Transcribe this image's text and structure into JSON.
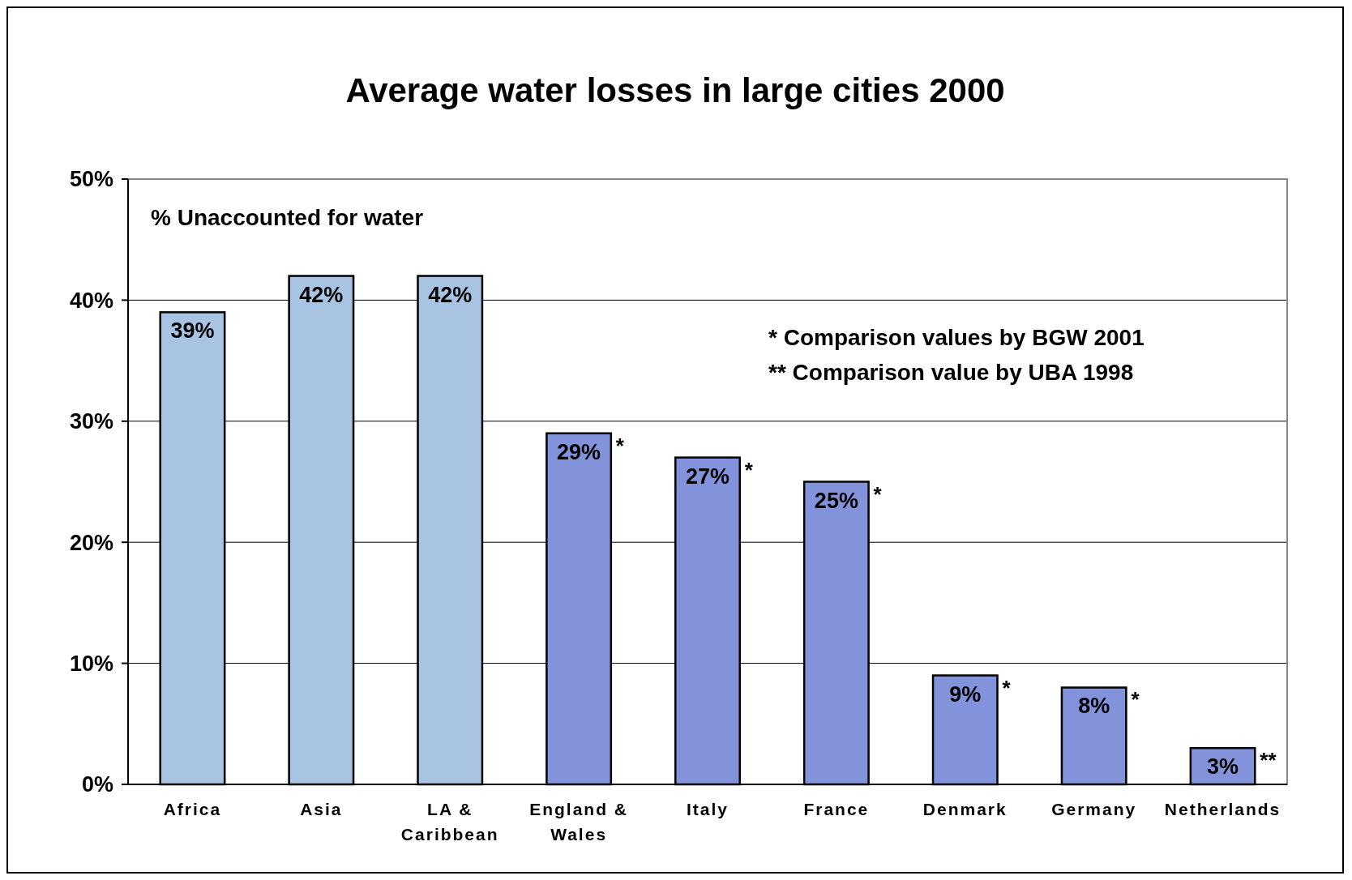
{
  "chart_data": {
    "type": "bar",
    "title": "Average water losses in large cities 2000",
    "ylabel": "% Unaccounted for water",
    "categories": [
      "Africa",
      "Asia",
      "LA & Caribbean",
      "England & Wales",
      "Italy",
      "France",
      "Denmark",
      "Germany",
      "Netherlands"
    ],
    "values": [
      39,
      42,
      42,
      29,
      27,
      25,
      9,
      8,
      3
    ],
    "value_labels": [
      "39%",
      "42%",
      "42%",
      "29%",
      "27%",
      "25%",
      "9%",
      "8%",
      "3%"
    ],
    "colors": [
      "#a9c4e3",
      "#a9c4e3",
      "#a9c4e3",
      "#8393db",
      "#8393db",
      "#8393db",
      "#8393db",
      "#8393db",
      "#8393db"
    ],
    "ylim": [
      0,
      50
    ],
    "yticks": [
      {
        "value": 0,
        "label": "0%"
      },
      {
        "value": 10,
        "label": "10%"
      },
      {
        "value": 20,
        "label": "20%"
      },
      {
        "value": 30,
        "label": "30%"
      },
      {
        "value": 40,
        "label": "40%"
      },
      {
        "value": 50,
        "label": "50%"
      }
    ],
    "grid": "y",
    "annotations": [
      "* Comparison values by BGW 2001",
      "** Comparison value by UBA 1998",
      {
        "text": "*",
        "x": "England & Wales",
        "y": 29
      },
      {
        "text": "*",
        "x": "Italy",
        "y": 27
      },
      {
        "text": "*",
        "x": "France",
        "y": 25
      },
      {
        "text": "*",
        "x": "Denmark",
        "y": 9
      },
      {
        "text": "*",
        "x": "Germany",
        "y": 8
      },
      {
        "text": "**",
        "x": "Netherlands",
        "y": 3
      }
    ]
  }
}
